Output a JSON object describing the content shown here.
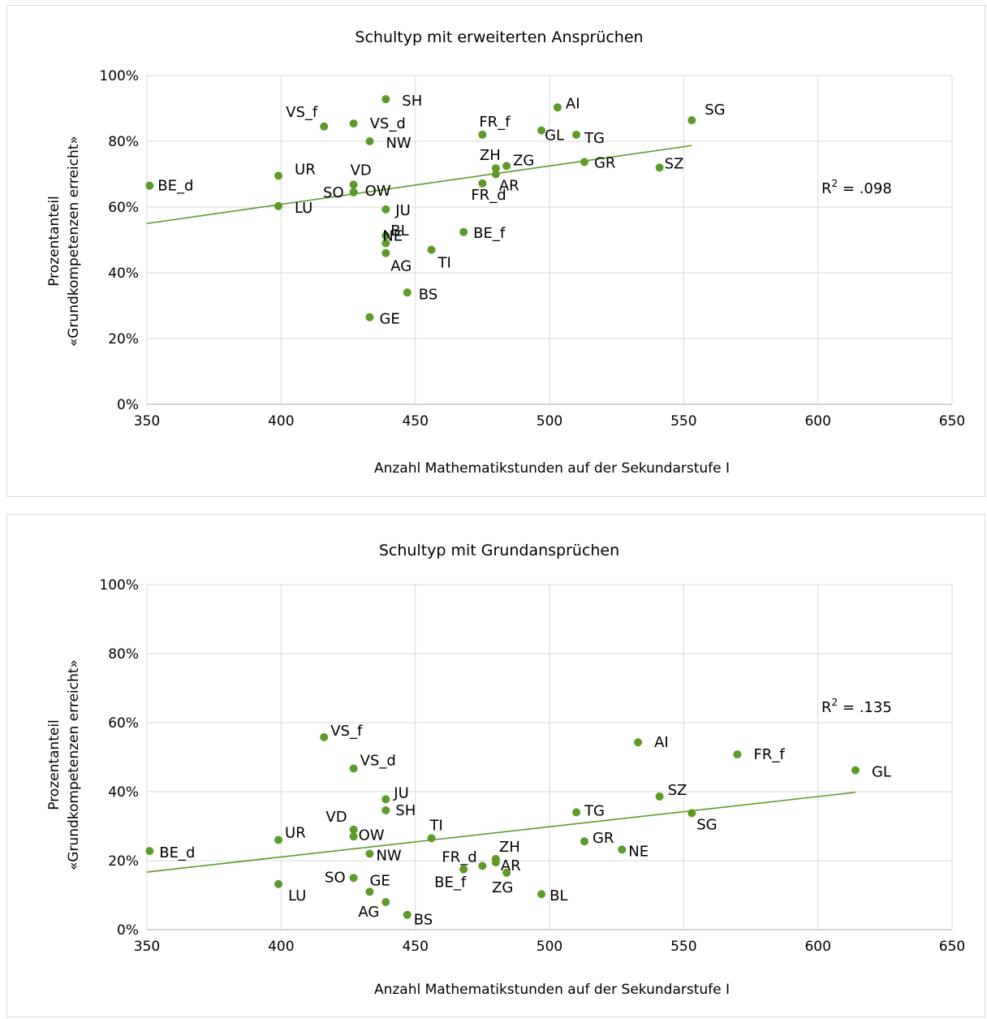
{
  "colors": {
    "marker": "#5c9b28",
    "trend": "#5c9b28",
    "grid": "#d9d9d9",
    "axis": "#bfbfbf",
    "text": "#000000"
  },
  "chart_data": [
    {
      "type": "scatter",
      "title": "Schultyp mit erweiterten Ansprüchen",
      "xlabel": "Anzahl Mathematikstunden auf der Sekundarstufe I",
      "ylabel_line1": "Prozentanteil",
      "ylabel_line2": "«Grundkompetenzen erreicht»",
      "r2_label": ".098",
      "r2_prefix": "R",
      "r2_sup": "2",
      "r2_eq": " = ",
      "xlim": [
        350,
        650
      ],
      "ylim": [
        0,
        100
      ],
      "xticks": [
        350,
        400,
        450,
        500,
        550,
        600,
        650
      ],
      "yticks": [
        "0%",
        "20%",
        "40%",
        "60%",
        "80%",
        "100%"
      ],
      "grid": true,
      "trendline": {
        "x": [
          350,
          553
        ],
        "y": [
          55.0,
          78.7
        ]
      },
      "points": [
        {
          "label": "BE_d",
          "x": 351,
          "y": 66.5
        },
        {
          "label": "UR",
          "x": 399,
          "y": 69.5
        },
        {
          "label": "LU",
          "x": 399,
          "y": 60.3
        },
        {
          "label": "VS_f",
          "x": 416,
          "y": 84.5
        },
        {
          "label": "VS_d",
          "x": 427,
          "y": 85.4
        },
        {
          "label": "VD",
          "x": 427,
          "y": 66.8
        },
        {
          "label": "OW",
          "x": 427,
          "y": 64.5
        },
        {
          "label": "SO",
          "x": 427,
          "y": 64.5
        },
        {
          "label": "NW",
          "x": 433,
          "y": 80.0
        },
        {
          "label": "SH",
          "x": 439,
          "y": 92.8
        },
        {
          "label": "JU",
          "x": 439,
          "y": 59.3
        },
        {
          "label": "BL",
          "x": 439,
          "y": 51.3
        },
        {
          "label": "NE",
          "x": 439,
          "y": 49.0
        },
        {
          "label": "AG",
          "x": 439,
          "y": 46.0
        },
        {
          "label": "BS",
          "x": 447,
          "y": 34.0
        },
        {
          "label": "GE",
          "x": 433,
          "y": 26.5
        },
        {
          "label": "TI",
          "x": 456,
          "y": 47.0
        },
        {
          "label": "BE_f",
          "x": 468,
          "y": 52.4
        },
        {
          "label": "FR_f",
          "x": 475,
          "y": 82.0
        },
        {
          "label": "FR_d",
          "x": 475,
          "y": 67.2
        },
        {
          "label": "ZH",
          "x": 480,
          "y": 71.8
        },
        {
          "label": "AR",
          "x": 480,
          "y": 70.0
        },
        {
          "label": "ZG",
          "x": 484,
          "y": 72.5
        },
        {
          "label": "GL",
          "x": 497,
          "y": 83.3
        },
        {
          "label": "AI",
          "x": 503,
          "y": 90.3
        },
        {
          "label": "TG",
          "x": 510,
          "y": 82.0
        },
        {
          "label": "GR",
          "x": 513,
          "y": 73.7
        },
        {
          "label": "SZ",
          "x": 541,
          "y": 72.0
        },
        {
          "label": "SG",
          "x": 553,
          "y": 86.4
        }
      ]
    },
    {
      "type": "scatter",
      "title": "Schultyp mit Grundansprüchen",
      "xlabel": "Anzahl Mathematikstunden auf der Sekundarstufe I",
      "ylabel_line1": "Prozentanteil",
      "ylabel_line2": "«Grundkompetenzen erreicht»",
      "r2_label": ".135",
      "r2_prefix": "R",
      "r2_sup": "2",
      "r2_eq": " = ",
      "xlim": [
        350,
        650
      ],
      "ylim": [
        0,
        100
      ],
      "xticks": [
        350,
        400,
        450,
        500,
        550,
        600,
        650
      ],
      "yticks": [
        "0%",
        "20%",
        "40%",
        "60%",
        "80%",
        "100%"
      ],
      "grid": true,
      "trendline": {
        "x": [
          350,
          614
        ],
        "y": [
          16.7,
          39.8
        ]
      },
      "points": [
        {
          "label": "BE_d",
          "x": 351,
          "y": 22.8
        },
        {
          "label": "UR",
          "x": 399,
          "y": 26.0
        },
        {
          "label": "LU",
          "x": 399,
          "y": 13.2
        },
        {
          "label": "VS_f",
          "x": 416,
          "y": 55.8
        },
        {
          "label": "VS_d",
          "x": 427,
          "y": 46.7
        },
        {
          "label": "VD",
          "x": 427,
          "y": 29.0
        },
        {
          "label": "OW",
          "x": 427,
          "y": 27.0
        },
        {
          "label": "SO",
          "x": 427,
          "y": 15.0
        },
        {
          "label": "NW",
          "x": 433,
          "y": 22.0
        },
        {
          "label": "GE",
          "x": 433,
          "y": 11.0
        },
        {
          "label": "JU",
          "x": 439,
          "y": 37.8
        },
        {
          "label": "SH",
          "x": 439,
          "y": 34.6
        },
        {
          "label": "AG",
          "x": 439,
          "y": 8.0
        },
        {
          "label": "BS",
          "x": 447,
          "y": 4.3
        },
        {
          "label": "TI",
          "x": 456,
          "y": 26.5
        },
        {
          "label": "BE_f",
          "x": 468,
          "y": 17.5
        },
        {
          "label": "FR_d",
          "x": 475,
          "y": 18.5
        },
        {
          "label": "ZH",
          "x": 480,
          "y": 20.5
        },
        {
          "label": "AR",
          "x": 480,
          "y": 19.5
        },
        {
          "label": "ZG",
          "x": 484,
          "y": 16.5
        },
        {
          "label": "BL",
          "x": 497,
          "y": 10.3
        },
        {
          "label": "TG",
          "x": 510,
          "y": 34.0
        },
        {
          "label": "GR",
          "x": 513,
          "y": 25.6
        },
        {
          "label": "NE",
          "x": 527,
          "y": 23.2
        },
        {
          "label": "AI",
          "x": 533,
          "y": 54.3
        },
        {
          "label": "SZ",
          "x": 541,
          "y": 38.6
        },
        {
          "label": "SG",
          "x": 553,
          "y": 33.8
        },
        {
          "label": "FR_f",
          "x": 570,
          "y": 50.8
        },
        {
          "label": "GL",
          "x": 614,
          "y": 46.2
        }
      ]
    }
  ]
}
